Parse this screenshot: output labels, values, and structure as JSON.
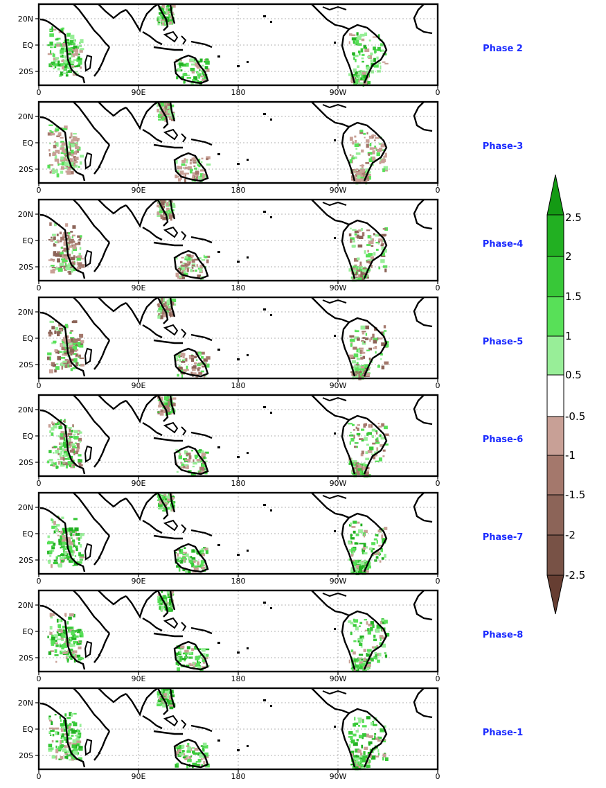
{
  "panels": [
    {
      "label": "Phase 2",
      "mood": "wet"
    },
    {
      "label": "Phase-3",
      "mood": "dry-light"
    },
    {
      "label": "Phase-4",
      "mood": "dry"
    },
    {
      "label": "Phase-5",
      "mood": "dry"
    },
    {
      "label": "Phase-6",
      "mood": "mixed"
    },
    {
      "label": "Phase-7",
      "mood": "wet"
    },
    {
      "label": "Phase-8",
      "mood": "wet"
    },
    {
      "label": "Phase-1",
      "mood": "wet"
    }
  ],
  "axes": {
    "y_ticks": [
      "20N",
      "EQ",
      "20S"
    ],
    "x_ticks": [
      "0",
      "90E",
      "180",
      "90W",
      "0"
    ]
  },
  "colorbar": {
    "labels": [
      "2.5",
      "2",
      "1.5",
      "1",
      "0.5",
      "-0.5",
      "-1",
      "-1.5",
      "-2",
      "-2.5"
    ],
    "colors": {
      "gt_2_5": "#149a14",
      "2_to_2_5": "#22b022",
      "1_5_to_2": "#38c838",
      "1_to_1_5": "#58e058",
      "0_5_to_1": "#98ee98",
      "neutral": "#ffffff",
      "m1_to_m0_5": "#c8a096",
      "m1_5_to_m1": "#a4786c",
      "m2_to_m1_5": "#8c6458",
      "m2_5_to_m2": "#785246",
      "lt_m2_5": "#663e32"
    }
  },
  "style": {
    "label_color": "#1b2bff",
    "coast_color": "#000000",
    "grid_color": "#9a9a9a"
  }
}
